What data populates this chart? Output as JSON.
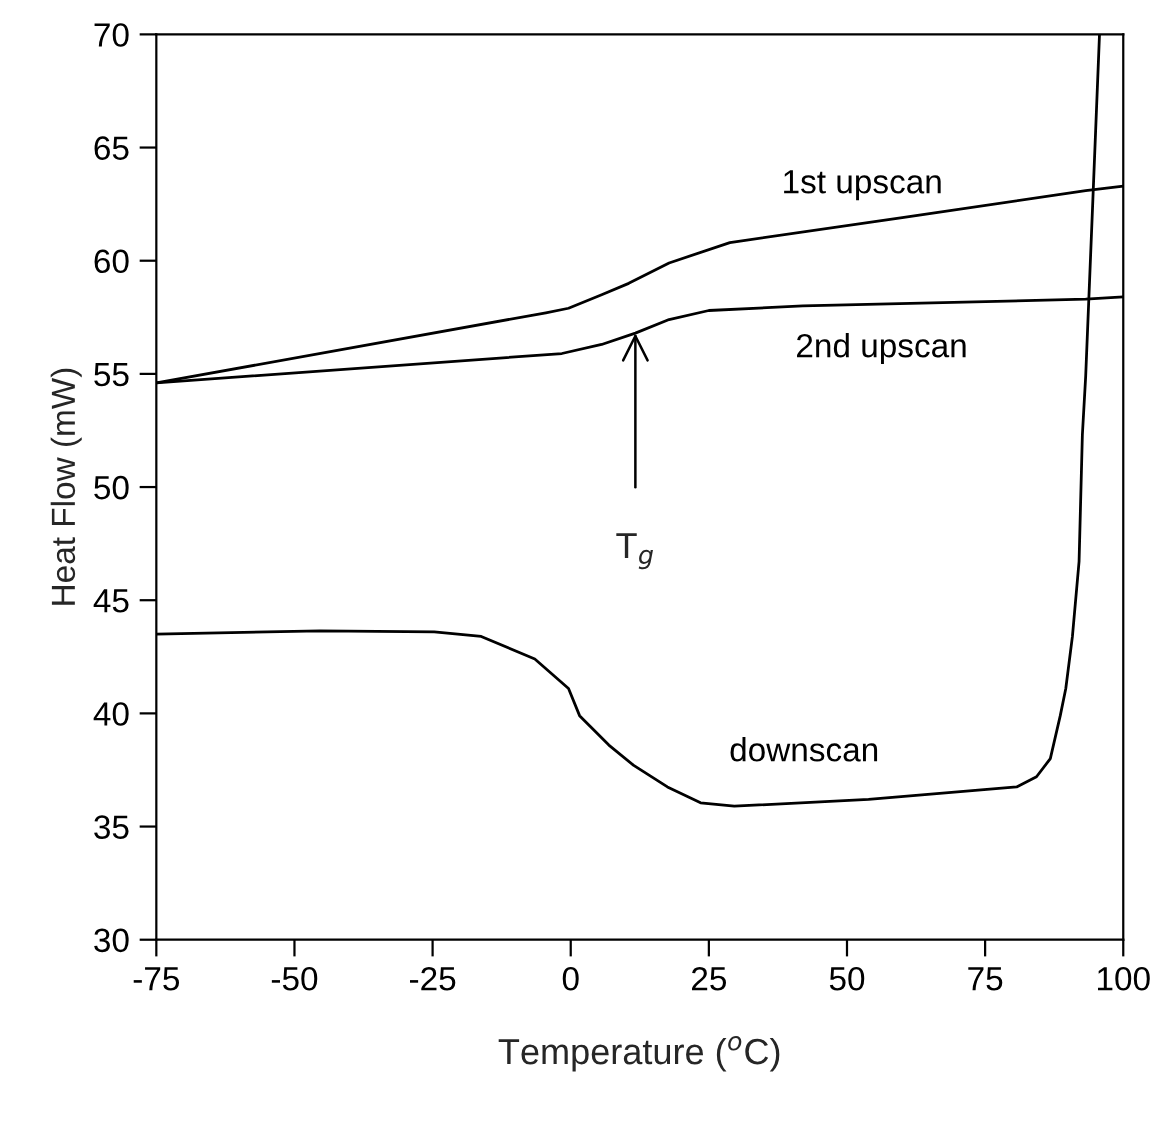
{
  "chart_data": {
    "type": "line",
    "xlabel": "Temperature ($^{o}$C)",
    "ylabel": "Heat Flow (mW)",
    "xlim": [
      -75,
      100
    ],
    "xticks": [
      -75,
      -50,
      -25,
      0,
      25,
      50,
      75,
      100
    ],
    "ylim": [
      30,
      70
    ],
    "yticks": [
      30,
      35,
      40,
      45,
      50,
      55,
      60,
      65,
      70
    ],
    "grid": false,
    "legend": false,
    "marker": "none",
    "line_style": "solid",
    "series": [
      {
        "name": "1st upscan",
        "color": "#000000",
        "x": [
          -75,
          -4.5,
          -0.4,
          5.6,
          10.5,
          17.8,
          28.8,
          60,
          93.2,
          100
        ],
        "values": [
          54.6,
          57.7,
          57.9,
          58.5,
          59.0,
          59.9,
          60.8,
          61.9,
          63.1,
          63.3
        ]
      },
      {
        "name": "2nd upscan",
        "color": "#000000",
        "x": [
          -75,
          -1.6,
          5.6,
          11.7,
          17.8,
          25,
          42,
          93.2,
          100
        ],
        "values": [
          54.6,
          55.9,
          56.3,
          56.8,
          57.4,
          57.8,
          58.0,
          58.3,
          58.4
        ]
      },
      {
        "name": "downscan",
        "color": "#000000",
        "x": [
          -75,
          -45.4,
          -24.7,
          -16.2,
          -6.5,
          -0.4,
          1.6,
          6.9,
          11.4,
          17.5,
          23.5,
          29.6,
          53.9,
          80.7,
          84.3,
          86.8,
          88.6,
          89.6,
          90.8,
          92.0,
          92.6,
          93.2,
          94.5,
          95.7
        ],
        "values": [
          43.5,
          43.65,
          43.6,
          43.4,
          42.4,
          41.1,
          39.9,
          38.6,
          37.7,
          36.75,
          36.05,
          35.9,
          36.2,
          36.75,
          37.2,
          38.0,
          39.9,
          41.1,
          43.4,
          46.7,
          52.3,
          54.9,
          62.7,
          70
        ]
      }
    ],
    "annotations": [
      {
        "text": "T$_{g}$",
        "x": 11.7,
        "y": 56.8
      }
    ]
  }
}
